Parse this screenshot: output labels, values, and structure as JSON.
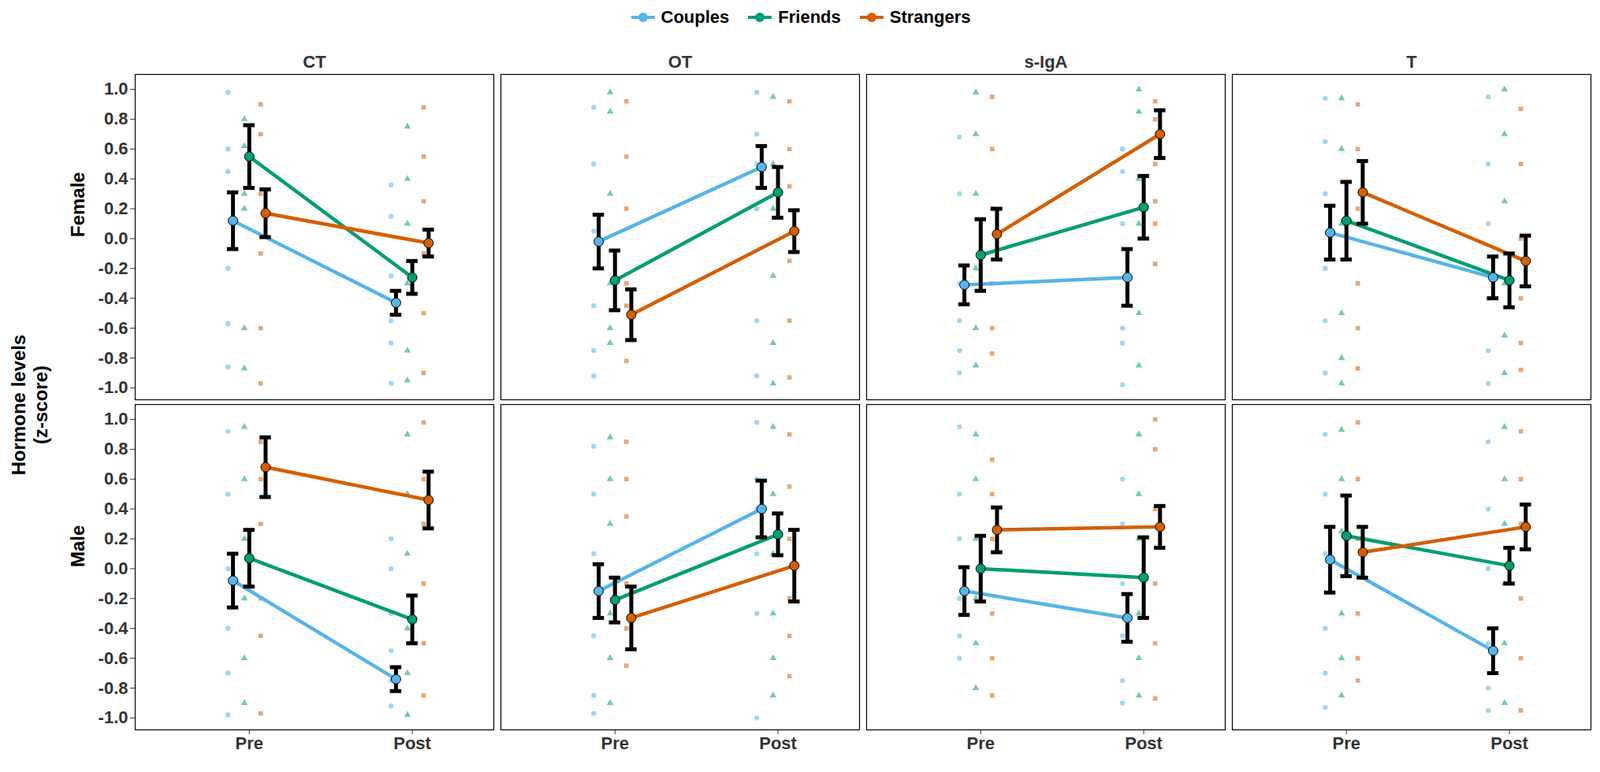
{
  "chart_data": {
    "type": "line",
    "y_label": "Hormone levels\n(z-score)",
    "legend": "top",
    "categories": [
      "Pre",
      "Post"
    ],
    "ylim": [
      -1.08,
      1.1
    ],
    "yticks": [
      {
        "value": -1,
        "label": "-1.0"
      },
      {
        "value": -0.8,
        "label": "-0.8"
      },
      {
        "value": -0.6,
        "label": "-0.6"
      },
      {
        "value": -0.4,
        "label": "-0.4"
      },
      {
        "value": -0.2,
        "label": "-0.2"
      },
      {
        "value": 0,
        "label": "0.0"
      },
      {
        "value": 0.2,
        "label": "0.2"
      },
      {
        "value": 0.4,
        "label": "0.4"
      },
      {
        "value": 0.6,
        "label": "0.6"
      },
      {
        "value": 0.8,
        "label": "0.8"
      },
      {
        "value": 1,
        "label": "1.0"
      }
    ],
    "facet_columns": [
      "CT",
      "OT",
      "s-IgA",
      "T"
    ],
    "facet_rows": [
      "Female",
      "Male"
    ],
    "panels": [
      {
        "row": "Female",
        "column": "CT",
        "series": [
          {
            "name": "Couples",
            "color": "#56B4E9",
            "marker": "circle",
            "values": [
              0.12,
              -0.43
            ],
            "error": [
              0.19,
              0.08
            ],
            "points": [
              [
                0.98,
                0.6,
                0.45,
                -0.2,
                -0.57,
                -0.86
              ],
              [
                0.36,
                0.15,
                -0.25,
                -0.55,
                -0.7,
                -0.97
              ]
            ]
          },
          {
            "name": "Friends",
            "color": "#009E73",
            "marker": "triangle",
            "values": [
              0.55,
              -0.26
            ],
            "error": [
              0.21,
              0.11
            ],
            "points": [
              [
                0.8,
                0.62,
                0.3,
                0.2,
                -0.6,
                -0.87
              ],
              [
                0.75,
                0.4,
                0.1,
                -0.3,
                -0.75,
                -0.95
              ]
            ]
          },
          {
            "name": "Strangers",
            "color": "#D55E00",
            "marker": "square",
            "values": [
              0.17,
              -0.03
            ],
            "error": [
              0.16,
              0.09
            ],
            "points": [
              [
                0.9,
                0.7,
                0.3,
                -0.1,
                -0.6,
                -0.97
              ],
              [
                0.88,
                0.55,
                0.25,
                -0.1,
                -0.5,
                -0.9
              ]
            ]
          }
        ]
      },
      {
        "row": "Female",
        "column": "OT",
        "series": [
          {
            "name": "Couples",
            "color": "#56B4E9",
            "marker": "circle",
            "values": [
              -0.02,
              0.48
            ],
            "error": [
              0.18,
              0.14
            ],
            "points": [
              [
                0.88,
                0.5,
                0.05,
                -0.45,
                -0.75,
                -0.92
              ],
              [
                0.98,
                0.7,
                0.5,
                0.2,
                -0.55,
                -0.92
              ]
            ]
          },
          {
            "name": "Friends",
            "color": "#009E73",
            "marker": "triangle",
            "values": [
              -0.28,
              0.31
            ],
            "error": [
              0.2,
              0.17
            ],
            "points": [
              [
                0.98,
                0.85,
                0.3,
                -0.3,
                -0.6,
                -0.7
              ],
              [
                0.95,
                0.5,
                0.2,
                -0.25,
                -0.7,
                -0.97
              ]
            ]
          },
          {
            "name": "Strangers",
            "color": "#D55E00",
            "marker": "square",
            "values": [
              -0.51,
              0.05
            ],
            "error": [
              0.17,
              0.14
            ],
            "points": [
              [
                0.92,
                0.55,
                0.2,
                -0.3,
                -0.45,
                -0.82
              ],
              [
                0.92,
                0.6,
                0.35,
                -0.15,
                -0.55,
                -0.93
              ]
            ]
          }
        ]
      },
      {
        "row": "Female",
        "column": "s-IgA",
        "series": [
          {
            "name": "Couples",
            "color": "#56B4E9",
            "marker": "circle",
            "values": [
              -0.31,
              -0.26
            ],
            "error": [
              0.13,
              0.19
            ],
            "points": [
              [
                0.68,
                0.3,
                -0.3,
                -0.55,
                -0.75,
                -0.9
              ],
              [
                0.6,
                0.45,
                0.1,
                -0.6,
                -0.7,
                -0.98
              ]
            ]
          },
          {
            "name": "Friends",
            "color": "#009E73",
            "marker": "triangle",
            "values": [
              -0.11,
              0.21
            ],
            "error": [
              0.24,
              0.21
            ],
            "points": [
              [
                0.98,
                0.7,
                0.3,
                -0.2,
                -0.6,
                -0.85
              ],
              [
                1.0,
                0.85,
                0.4,
                0.1,
                -0.5,
                -0.85
              ]
            ]
          },
          {
            "name": "Strangers",
            "color": "#D55E00",
            "marker": "square",
            "values": [
              0.03,
              0.7
            ],
            "error": [
              0.17,
              0.16
            ],
            "points": [
              [
                0.95,
                0.6,
                0.2,
                -0.3,
                -0.6,
                -0.77
              ],
              [
                0.92,
                0.8,
                0.5,
                0.25,
                0.1,
                -0.17
              ]
            ]
          }
        ]
      },
      {
        "row": "Female",
        "column": "T",
        "series": [
          {
            "name": "Couples",
            "color": "#56B4E9",
            "marker": "circle",
            "values": [
              0.04,
              -0.26
            ],
            "error": [
              0.18,
              0.14
            ],
            "points": [
              [
                0.94,
                0.65,
                0.3,
                -0.2,
                -0.55,
                -0.9
              ],
              [
                0.95,
                0.5,
                0.1,
                -0.4,
                -0.75,
                -0.97
              ]
            ]
          },
          {
            "name": "Friends",
            "color": "#009E73",
            "marker": "triangle",
            "values": [
              0.12,
              -0.28
            ],
            "error": [
              0.26,
              0.18
            ],
            "points": [
              [
                0.94,
                0.6,
                0.1,
                -0.5,
                -0.8,
                -0.97
              ],
              [
                1.0,
                0.7,
                0.25,
                -0.3,
                -0.65,
                -0.9
              ]
            ]
          },
          {
            "name": "Strangers",
            "color": "#D55E00",
            "marker": "square",
            "values": [
              0.31,
              -0.15
            ],
            "error": [
              0.21,
              0.17
            ],
            "points": [
              [
                0.9,
                0.6,
                0.2,
                -0.3,
                -0.6,
                -0.87
              ],
              [
                0.87,
                0.5,
                0.0,
                -0.4,
                -0.7,
                -0.88
              ]
            ]
          }
        ]
      },
      {
        "row": "Male",
        "column": "CT",
        "series": [
          {
            "name": "Couples",
            "color": "#56B4E9",
            "marker": "circle",
            "values": [
              -0.08,
              -0.74
            ],
            "error": [
              0.18,
              0.08
            ],
            "points": [
              [
                0.92,
                0.5,
                0.0,
                -0.4,
                -0.7,
                -0.98
              ],
              [
                0.2,
                0.0,
                -0.3,
                -0.55,
                -0.75,
                -0.92
              ]
            ]
          },
          {
            "name": "Friends",
            "color": "#009E73",
            "marker": "triangle",
            "values": [
              0.07,
              -0.34
            ],
            "error": [
              0.19,
              0.16
            ],
            "points": [
              [
                0.95,
                0.6,
                0.2,
                -0.2,
                -0.6,
                -0.9
              ],
              [
                0.9,
                0.5,
                0.1,
                -0.4,
                -0.7,
                -0.98
              ]
            ]
          },
          {
            "name": "Strangers",
            "color": "#D55E00",
            "marker": "square",
            "values": [
              0.68,
              0.46
            ],
            "error": [
              0.2,
              0.19
            ],
            "points": [
              [
                0.85,
                0.6,
                0.3,
                -0.2,
                -0.45,
                -0.97
              ],
              [
                0.98,
                0.6,
                0.3,
                -0.1,
                -0.5,
                -0.85
              ]
            ]
          }
        ]
      },
      {
        "row": "Male",
        "column": "OT",
        "series": [
          {
            "name": "Couples",
            "color": "#56B4E9",
            "marker": "circle",
            "values": [
              -0.15,
              0.4
            ],
            "error": [
              0.18,
              0.19
            ],
            "points": [
              [
                0.82,
                0.5,
                0.1,
                -0.45,
                -0.85,
                -0.97
              ],
              [
                0.98,
                0.6,
                0.4,
                0.1,
                -0.3,
                -1.0
              ]
            ]
          },
          {
            "name": "Friends",
            "color": "#009E73",
            "marker": "triangle",
            "values": [
              -0.21,
              0.23
            ],
            "error": [
              0.15,
              0.14
            ],
            "points": [
              [
                0.88,
                0.6,
                0.3,
                -0.3,
                -0.6,
                -0.9
              ],
              [
                0.95,
                0.5,
                0.1,
                -0.3,
                -0.6,
                -0.85
              ]
            ]
          },
          {
            "name": "Strangers",
            "color": "#D55E00",
            "marker": "square",
            "values": [
              -0.33,
              0.02
            ],
            "error": [
              0.21,
              0.24
            ],
            "points": [
              [
                0.85,
                0.6,
                0.35,
                -0.1,
                -0.4,
                -0.65
              ],
              [
                0.9,
                0.55,
                0.2,
                -0.2,
                -0.45,
                -0.72
              ]
            ]
          }
        ]
      },
      {
        "row": "Male",
        "column": "s-IgA",
        "series": [
          {
            "name": "Couples",
            "color": "#56B4E9",
            "marker": "circle",
            "values": [
              -0.15,
              -0.33
            ],
            "error": [
              0.16,
              0.16
            ],
            "points": [
              [
                0.95,
                0.5,
                0.2,
                -0.2,
                -0.45,
                -0.6
              ],
              [
                0.6,
                0.3,
                -0.1,
                -0.45,
                -0.75,
                -0.9
              ]
            ]
          },
          {
            "name": "Friends",
            "color": "#009E73",
            "marker": "triangle",
            "values": [
              0.0,
              -0.06
            ],
            "error": [
              0.22,
              0.27
            ],
            "points": [
              [
                0.9,
                0.6,
                0.2,
                -0.2,
                -0.5,
                -0.8
              ],
              [
                0.9,
                0.5,
                0.2,
                -0.3,
                -0.6,
                -0.85
              ]
            ]
          },
          {
            "name": "Strangers",
            "color": "#D55E00",
            "marker": "square",
            "values": [
              0.26,
              0.28
            ],
            "error": [
              0.15,
              0.14
            ],
            "points": [
              [
                0.73,
                0.5,
                0.2,
                -0.3,
                -0.6,
                -0.85
              ],
              [
                1.0,
                0.8,
                0.4,
                -0.1,
                -0.5,
                -0.87
              ]
            ]
          }
        ]
      },
      {
        "row": "Male",
        "column": "T",
        "series": [
          {
            "name": "Couples",
            "color": "#56B4E9",
            "marker": "circle",
            "values": [
              0.06,
              -0.55
            ],
            "error": [
              0.22,
              0.15
            ],
            "points": [
              [
                0.9,
                0.5,
                0.1,
                -0.4,
                -0.7,
                -0.93
              ],
              [
                0.85,
                0.4,
                0.0,
                -0.5,
                -0.8,
                -0.95
              ]
            ]
          },
          {
            "name": "Friends",
            "color": "#009E73",
            "marker": "triangle",
            "values": [
              0.22,
              0.02
            ],
            "error": [
              0.27,
              0.12
            ],
            "points": [
              [
                0.93,
                0.6,
                0.25,
                -0.3,
                -0.6,
                -0.85
              ],
              [
                0.95,
                0.6,
                0.3,
                -0.1,
                -0.5,
                -0.9
              ]
            ]
          },
          {
            "name": "Strangers",
            "color": "#D55E00",
            "marker": "square",
            "values": [
              0.11,
              0.28
            ],
            "error": [
              0.17,
              0.15
            ],
            "points": [
              [
                0.98,
                0.6,
                0.2,
                -0.3,
                -0.6,
                -0.75
              ],
              [
                0.92,
                0.6,
                0.3,
                -0.2,
                -0.6,
                -0.95
              ]
            ]
          }
        ]
      }
    ]
  }
}
